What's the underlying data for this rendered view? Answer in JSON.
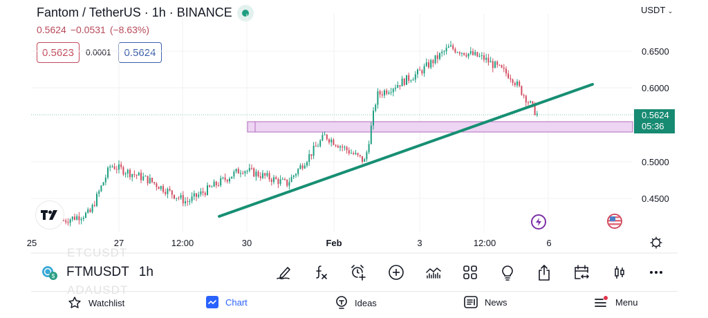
{
  "header": {
    "title": "Fantom / TetherUS · 1h · BINANCE",
    "last_price": "0.5624",
    "change": "−0.0531",
    "change_pct": "(−8.63%)",
    "bid": "0.5623",
    "spread": "0.0001",
    "ask": "0.5624",
    "currency": "USDT",
    "market_status": "live"
  },
  "price_axis": {
    "labels": [
      "0.6500",
      "0.6000",
      "0.5000",
      "0.4500"
    ],
    "current_price": "0.5624",
    "countdown": "05:36"
  },
  "time_axis": {
    "labels": [
      "25",
      "27",
      "12:00",
      "30",
      "Feb",
      "3",
      "12:00",
      "6"
    ]
  },
  "chart_data": {
    "type": "candlestick",
    "symbol": "FTMUSDT",
    "interval": "1h",
    "exchange": "BINANCE",
    "ylim": [
      0.41,
      0.67
    ],
    "y_ticks": [
      0.45,
      0.5,
      0.6,
      0.65
    ],
    "x_ticks": [
      "25",
      "27",
      "12:00",
      "30",
      "Feb",
      "3",
      "12:00",
      "6"
    ],
    "approx_path": [
      {
        "x": "25",
        "price": 0.42
      },
      {
        "x": "26",
        "price": 0.43
      },
      {
        "x": "27",
        "price": 0.495
      },
      {
        "x": "28",
        "price": 0.475
      },
      {
        "x": "29 12:00",
        "price": 0.445
      },
      {
        "x": "30",
        "price": 0.49
      },
      {
        "x": "31",
        "price": 0.47
      },
      {
        "x": "Feb 1",
        "price": 0.535
      },
      {
        "x": "Feb 1 late",
        "price": 0.5
      },
      {
        "x": "Feb 2",
        "price": 0.59
      },
      {
        "x": "Feb 3",
        "price": 0.62
      },
      {
        "x": "Feb 3 12:00",
        "price": 0.655
      },
      {
        "x": "Feb 4",
        "price": 0.64
      },
      {
        "x": "Feb 5",
        "price": 0.615
      },
      {
        "x": "Feb 5 late",
        "price": 0.5624
      }
    ],
    "annotations": [
      {
        "type": "trendline",
        "color": "#1e9e80",
        "from": {
          "x": "29",
          "price": 0.425
        },
        "to": {
          "x": "Feb 6+",
          "price": 0.605
        }
      },
      {
        "type": "rectangle_zone",
        "color": "#e6c8ee",
        "price_range": [
          0.54,
          0.555
        ],
        "from_x": "30"
      },
      {
        "type": "price_line",
        "price": 0.5624
      }
    ]
  },
  "symbol_bar": {
    "symbol": "FTMUSDT",
    "interval": "1h",
    "ghost_above": "ETCUSDT",
    "ghost_below": "ADAUSDT"
  },
  "toolbar": {
    "items": [
      "drawing-tools",
      "indicators",
      "add-alert",
      "add",
      "compare",
      "layouts",
      "ideas",
      "share",
      "date-range",
      "chart-type",
      "more"
    ]
  },
  "bottom_nav": {
    "items": [
      {
        "label": "Watchlist",
        "icon": "star-icon"
      },
      {
        "label": "Chart",
        "icon": "chart-icon",
        "active": true
      },
      {
        "label": "Ideas",
        "icon": "lightbulb-icon"
      },
      {
        "label": "News",
        "icon": "news-icon"
      },
      {
        "label": "Menu",
        "icon": "menu-icon",
        "badge": true
      }
    ]
  },
  "colors": {
    "up": "#1e9e80",
    "down": "#d14b5f",
    "trendline": "#178f73",
    "zone_fill": "#eed5f3",
    "zone_border": "#b06cbe",
    "accent": "#2962ff"
  }
}
